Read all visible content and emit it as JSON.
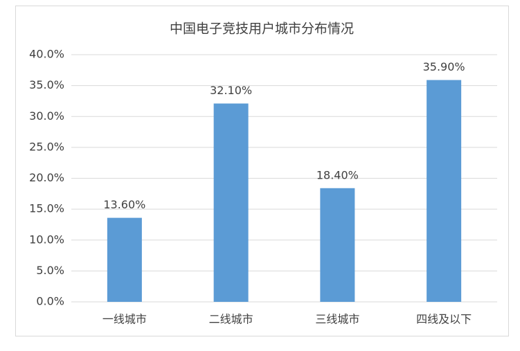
{
  "chart_data": {
    "type": "bar",
    "title": "中国电子竞技用户城市分布情况",
    "categories": [
      "一线城市",
      "二线城市",
      "三线城市",
      "四线及以下"
    ],
    "values": [
      13.6,
      32.1,
      18.4,
      35.9
    ],
    "value_labels": [
      "13.60%",
      "32.10%",
      "18.40%",
      "35.90%"
    ],
    "color": "#5b9bd5",
    "ylim": [
      0,
      40
    ],
    "yticks": [
      {
        "value": 0,
        "label": "0.0%"
      },
      {
        "value": 5,
        "label": "5.0%"
      },
      {
        "value": 10,
        "label": "10.0%"
      },
      {
        "value": 15,
        "label": "15.0%"
      },
      {
        "value": 20,
        "label": "20.0%"
      },
      {
        "value": 25,
        "label": "25.0%"
      },
      {
        "value": 30,
        "label": "30.0%"
      },
      {
        "value": 35,
        "label": "35.0%"
      },
      {
        "value": 40,
        "label": "40.0%"
      }
    ],
    "grid": true
  }
}
